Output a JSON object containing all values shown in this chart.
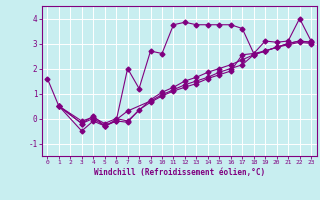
{
  "xlabel": "Windchill (Refroidissement éolien,°C)",
  "bg_color": "#c8eef0",
  "line_color": "#800080",
  "grid_color": "#ffffff",
  "spine_color": "#800080",
  "xlim": [
    -0.5,
    23.5
  ],
  "ylim": [
    -1.5,
    4.5
  ],
  "xticks": [
    0,
    1,
    2,
    3,
    4,
    5,
    6,
    7,
    8,
    9,
    10,
    11,
    12,
    13,
    14,
    15,
    16,
    17,
    18,
    19,
    20,
    21,
    22,
    23
  ],
  "yticks": [
    -1,
    0,
    1,
    2,
    3,
    4
  ],
  "series1_x": [
    0,
    1,
    3,
    4,
    5,
    6,
    7,
    8,
    9,
    10,
    11,
    12,
    13,
    14,
    15,
    16,
    17,
    18,
    19,
    20,
    21,
    22,
    23
  ],
  "series1_y": [
    1.6,
    0.5,
    -0.2,
    0.1,
    -0.3,
    -0.1,
    2.0,
    1.2,
    2.7,
    2.6,
    3.75,
    3.85,
    3.75,
    3.75,
    3.75,
    3.75,
    3.6,
    2.6,
    3.1,
    3.05,
    3.1,
    4.0,
    3.1
  ],
  "series2_x": [
    1,
    3,
    4,
    5,
    6,
    7,
    8,
    9,
    10,
    11,
    12,
    13,
    14,
    15,
    16,
    17,
    18,
    19,
    20,
    21,
    22,
    23
  ],
  "series2_y": [
    0.5,
    -0.5,
    -0.1,
    -0.3,
    -0.1,
    -0.15,
    0.35,
    0.65,
    0.9,
    1.1,
    1.25,
    1.4,
    1.6,
    1.75,
    1.9,
    2.55,
    2.6,
    2.7,
    2.85,
    3.0,
    3.1,
    3.05
  ],
  "series3_x": [
    1,
    3,
    4,
    5,
    6,
    7,
    9,
    10,
    11,
    12,
    13,
    14,
    15,
    16,
    17,
    18,
    19,
    20,
    21,
    22,
    23
  ],
  "series3_y": [
    0.5,
    -0.2,
    0.0,
    -0.3,
    -0.05,
    0.3,
    0.7,
    0.95,
    1.15,
    1.35,
    1.5,
    1.65,
    1.85,
    2.0,
    2.15,
    2.55,
    2.7,
    2.85,
    2.95,
    3.05,
    3.0
  ],
  "series4_x": [
    1,
    3,
    4,
    5,
    6,
    7,
    9,
    10,
    11,
    12,
    13,
    14,
    15,
    16,
    17,
    18,
    19,
    20,
    21,
    22,
    23
  ],
  "series4_y": [
    0.5,
    -0.1,
    0.05,
    -0.2,
    0.0,
    -0.1,
    0.75,
    1.05,
    1.25,
    1.5,
    1.65,
    1.85,
    2.0,
    2.15,
    2.35,
    2.55,
    2.7,
    2.85,
    3.0,
    3.1,
    3.05
  ]
}
